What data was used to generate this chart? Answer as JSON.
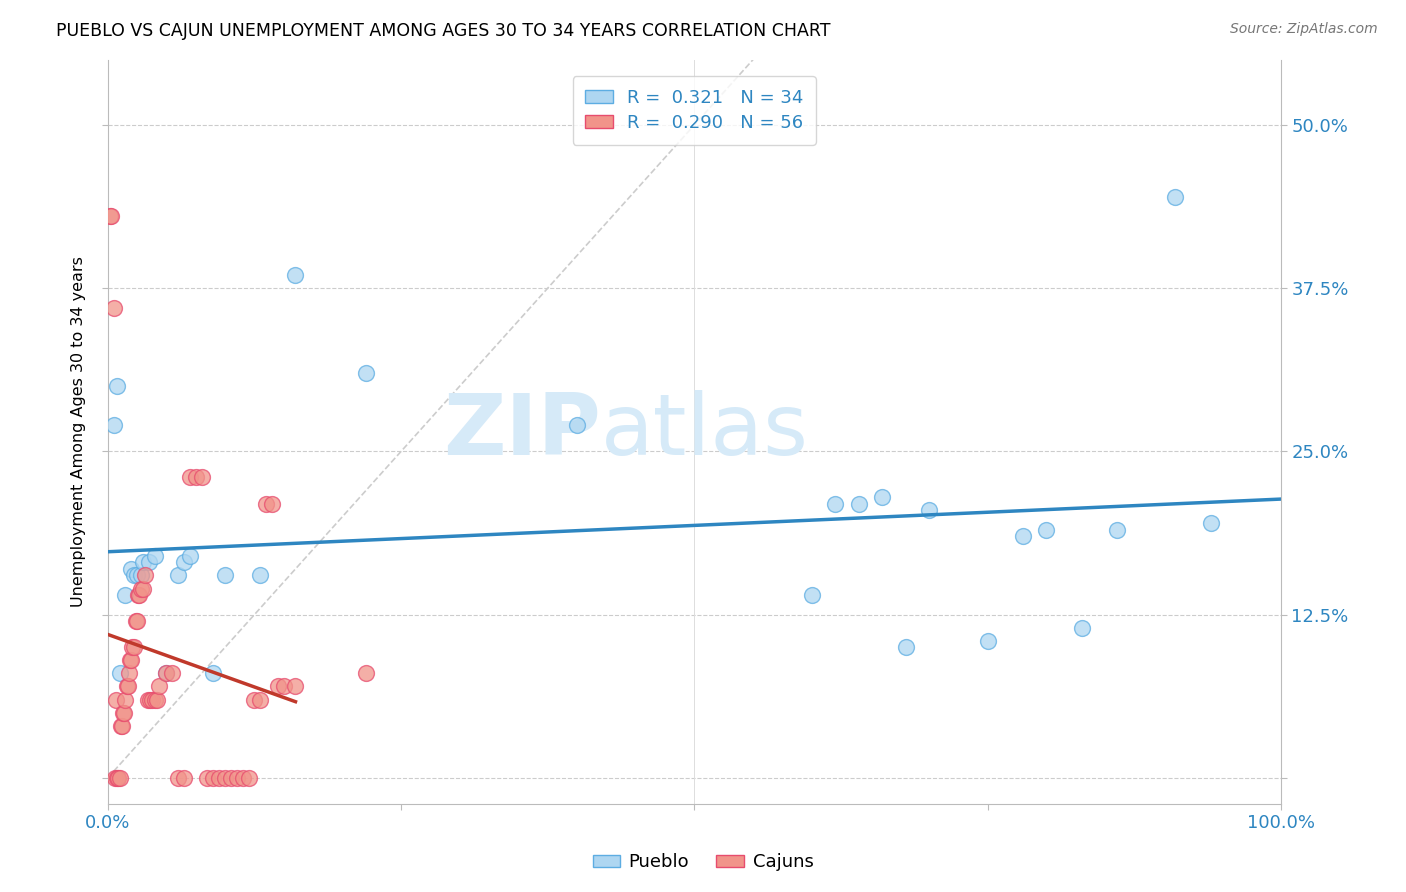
{
  "title": "PUEBLO VS CAJUN UNEMPLOYMENT AMONG AGES 30 TO 34 YEARS CORRELATION CHART",
  "source": "Source: ZipAtlas.com",
  "ylabel": "Unemployment Among Ages 30 to 34 years",
  "xlim": [
    0,
    1.0
  ],
  "ylim": [
    -0.02,
    0.55
  ],
  "xticks": [
    0.0,
    0.25,
    0.5,
    0.75,
    1.0
  ],
  "xticklabels": [
    "0.0%",
    "",
    "",
    "",
    "100.0%"
  ],
  "yticks": [
    0.0,
    0.125,
    0.25,
    0.375,
    0.5
  ],
  "yticklabels_right": [
    "",
    "12.5%",
    "25.0%",
    "37.5%",
    "50.0%"
  ],
  "pueblo_color": "#aed6f1",
  "cajun_color": "#f1948a",
  "pueblo_edge_color": "#5dade2",
  "cajun_edge_color": "#e74c6e",
  "pueblo_line_color": "#2e86c1",
  "cajun_line_color": "#c0392b",
  "diag_line_color": "#cccccc",
  "tick_label_color": "#2e86c1",
  "pueblo_R": "0.321",
  "pueblo_N": "34",
  "cajun_R": "0.290",
  "cajun_N": "56",
  "watermark_color": "#d6eaf8",
  "pueblo_scatter": [
    [
      0.005,
      0.27
    ],
    [
      0.008,
      0.3
    ],
    [
      0.01,
      0.08
    ],
    [
      0.015,
      0.14
    ],
    [
      0.02,
      0.16
    ],
    [
      0.022,
      0.155
    ],
    [
      0.025,
      0.155
    ],
    [
      0.028,
      0.155
    ],
    [
      0.03,
      0.165
    ],
    [
      0.035,
      0.165
    ],
    [
      0.04,
      0.17
    ],
    [
      0.05,
      0.08
    ],
    [
      0.06,
      0.155
    ],
    [
      0.065,
      0.165
    ],
    [
      0.07,
      0.17
    ],
    [
      0.09,
      0.08
    ],
    [
      0.1,
      0.155
    ],
    [
      0.13,
      0.155
    ],
    [
      0.16,
      0.385
    ],
    [
      0.22,
      0.31
    ],
    [
      0.4,
      0.27
    ],
    [
      0.6,
      0.14
    ],
    [
      0.62,
      0.21
    ],
    [
      0.64,
      0.21
    ],
    [
      0.66,
      0.215
    ],
    [
      0.68,
      0.1
    ],
    [
      0.7,
      0.205
    ],
    [
      0.75,
      0.105
    ],
    [
      0.78,
      0.185
    ],
    [
      0.8,
      0.19
    ],
    [
      0.83,
      0.115
    ],
    [
      0.86,
      0.19
    ],
    [
      0.91,
      0.445
    ],
    [
      0.94,
      0.195
    ]
  ],
  "cajun_scatter": [
    [
      0.002,
      0.43
    ],
    [
      0.003,
      0.43
    ],
    [
      0.005,
      0.36
    ],
    [
      0.006,
      0.0
    ],
    [
      0.007,
      0.06
    ],
    [
      0.008,
      0.0
    ],
    [
      0.009,
      0.0
    ],
    [
      0.01,
      0.0
    ],
    [
      0.011,
      0.04
    ],
    [
      0.012,
      0.04
    ],
    [
      0.013,
      0.05
    ],
    [
      0.014,
      0.05
    ],
    [
      0.015,
      0.06
    ],
    [
      0.016,
      0.07
    ],
    [
      0.017,
      0.07
    ],
    [
      0.018,
      0.08
    ],
    [
      0.019,
      0.09
    ],
    [
      0.02,
      0.09
    ],
    [
      0.021,
      0.1
    ],
    [
      0.022,
      0.1
    ],
    [
      0.024,
      0.12
    ],
    [
      0.025,
      0.12
    ],
    [
      0.026,
      0.14
    ],
    [
      0.027,
      0.14
    ],
    [
      0.028,
      0.145
    ],
    [
      0.03,
      0.145
    ],
    [
      0.032,
      0.155
    ],
    [
      0.034,
      0.06
    ],
    [
      0.036,
      0.06
    ],
    [
      0.038,
      0.06
    ],
    [
      0.04,
      0.06
    ],
    [
      0.042,
      0.06
    ],
    [
      0.044,
      0.07
    ],
    [
      0.05,
      0.08
    ],
    [
      0.055,
      0.08
    ],
    [
      0.06,
      0.0
    ],
    [
      0.065,
      0.0
    ],
    [
      0.07,
      0.23
    ],
    [
      0.075,
      0.23
    ],
    [
      0.08,
      0.23
    ],
    [
      0.085,
      0.0
    ],
    [
      0.09,
      0.0
    ],
    [
      0.095,
      0.0
    ],
    [
      0.1,
      0.0
    ],
    [
      0.105,
      0.0
    ],
    [
      0.11,
      0.0
    ],
    [
      0.115,
      0.0
    ],
    [
      0.12,
      0.0
    ],
    [
      0.125,
      0.06
    ],
    [
      0.13,
      0.06
    ],
    [
      0.135,
      0.21
    ],
    [
      0.14,
      0.21
    ],
    [
      0.145,
      0.07
    ],
    [
      0.15,
      0.07
    ],
    [
      0.16,
      0.07
    ],
    [
      0.22,
      0.08
    ]
  ]
}
